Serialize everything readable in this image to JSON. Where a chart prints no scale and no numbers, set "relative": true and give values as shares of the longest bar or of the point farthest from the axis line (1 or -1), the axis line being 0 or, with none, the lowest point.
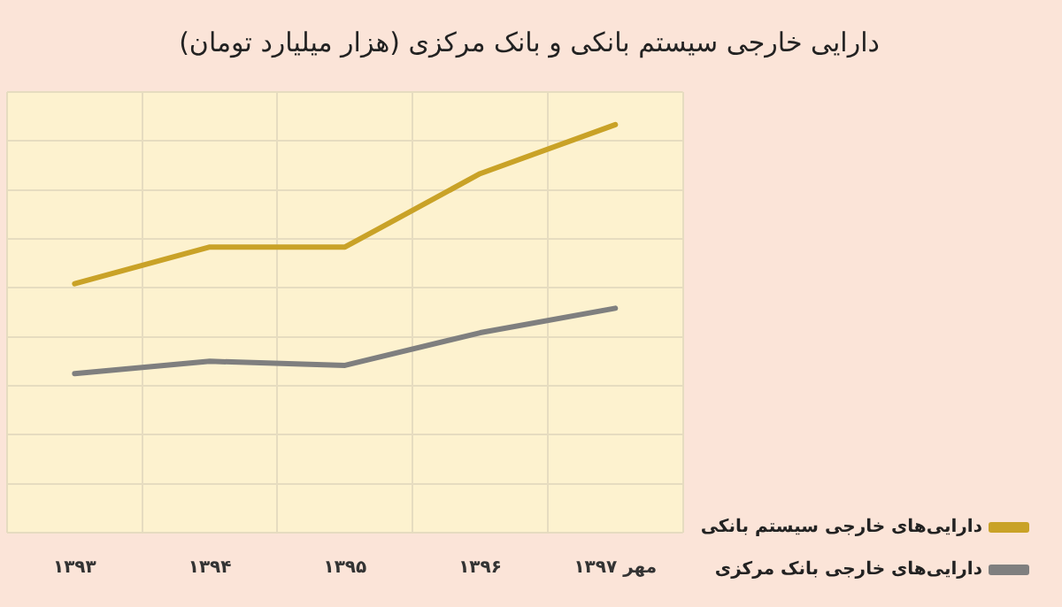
{
  "chart_data": {
    "type": "line",
    "title": "دارایی خارجی سیستم بانکی و بانک مرکزی (هزار میلیارد تومان)",
    "categories": [
      "۱۳۹۳",
      "۱۳۹۴",
      "۱۳۹۵",
      "۱۳۹۶",
      "مهر ۱۳۹۷"
    ],
    "relative": true,
    "grid": true,
    "legend": "bottom right",
    "marker": "none",
    "line_style": "solid",
    "series": [
      {
        "name": "دارایی‌های خارجی سیستم بانکی",
        "color": "#c9a227",
        "values": [
          0.61,
          0.7,
          0.7,
          0.88,
          1
        ]
      },
      {
        "name": "دارایی‌های خارجی بانک مرکزی",
        "color": "#7f7f7f",
        "values": [
          0.39,
          0.42,
          0.41,
          0.49,
          0.55
        ]
      }
    ]
  }
}
